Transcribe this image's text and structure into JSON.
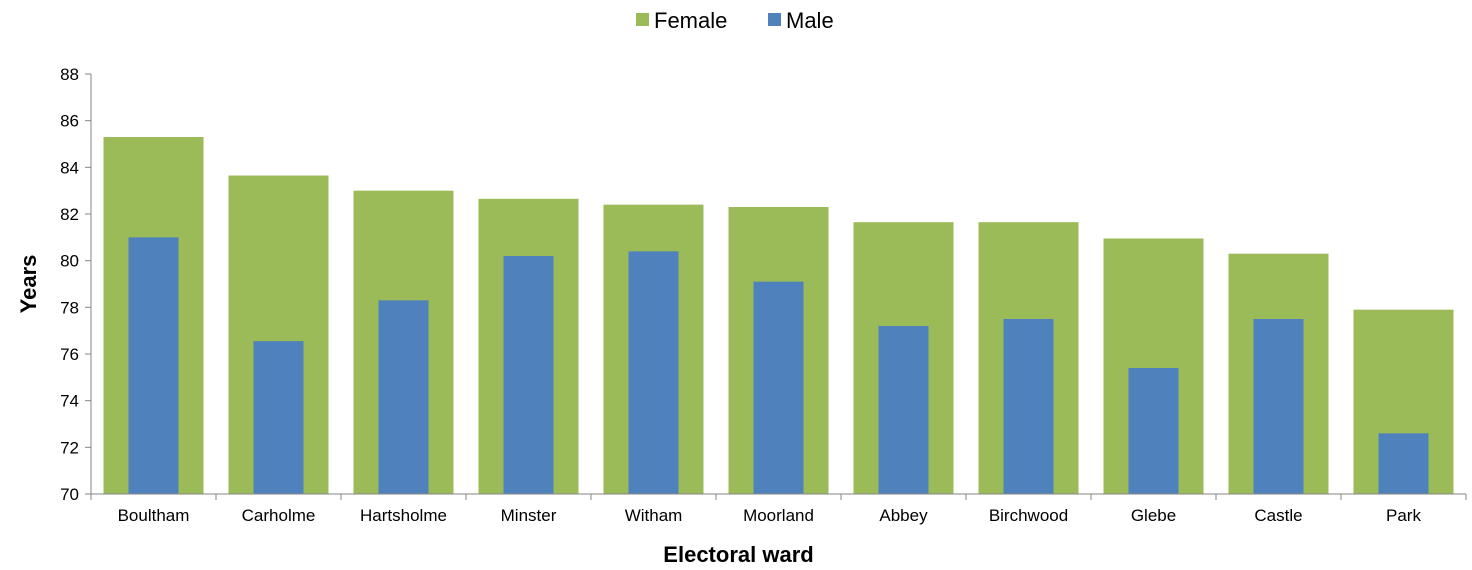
{
  "chart_data": {
    "type": "bar",
    "categories": [
      "Boultham",
      "Carholme",
      "Hartsholme",
      "Minster",
      "Witham",
      "Moorland",
      "Abbey",
      "Birchwood",
      "Glebe",
      "Castle",
      "Park"
    ],
    "series": [
      {
        "name": "Female",
        "color": "#9BBB59",
        "values": [
          85.3,
          83.65,
          83.0,
          82.65,
          82.4,
          82.3,
          81.65,
          81.65,
          80.95,
          80.3,
          77.9
        ]
      },
      {
        "name": "Male",
        "color": "#4F81BD",
        "values": [
          81.0,
          76.55,
          78.3,
          80.2,
          80.4,
          79.1,
          77.2,
          77.5,
          75.4,
          77.5,
          72.6
        ]
      }
    ],
    "xlabel": "Electoral ward",
    "ylabel": "Years",
    "ylim": [
      70,
      88
    ],
    "yticks": [
      "70",
      "72",
      "74",
      "76",
      "78",
      "80",
      "82",
      "84",
      "86",
      "88"
    ],
    "grid": false,
    "legend_position": "top"
  }
}
